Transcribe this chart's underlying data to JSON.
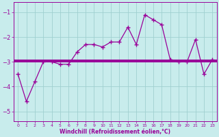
{
  "xlabel": "Windchill (Refroidissement éolien,°C)",
  "ylabel": "",
  "bg_color": "#c8ecec",
  "line_color": "#990099",
  "grid_color": "#a0d0d0",
  "x_data": [
    0,
    1,
    2,
    3,
    4,
    5,
    6,
    7,
    8,
    9,
    10,
    11,
    12,
    13,
    14,
    15,
    16,
    17,
    18,
    19,
    20,
    21,
    22,
    23
  ],
  "y_data": [
    -3.5,
    -4.6,
    -3.8,
    -3.0,
    -3.0,
    -3.1,
    -3.1,
    -2.6,
    -2.3,
    -2.3,
    -2.4,
    -2.2,
    -2.2,
    -1.6,
    -2.3,
    -1.1,
    -1.3,
    -1.5,
    -2.9,
    -3.0,
    -3.0,
    -2.1,
    -3.5,
    -2.9
  ],
  "reg_line1_x": [
    -0.5,
    23.5
  ],
  "reg_line1_y": [
    -3.0,
    -3.0
  ],
  "reg_line2_x": [
    -0.5,
    23.5
  ],
  "reg_line2_y": [
    -2.95,
    -2.95
  ],
  "ylim": [
    -5.4,
    -0.6
  ],
  "xlim": [
    -0.5,
    23.5
  ],
  "yticks": [
    -5,
    -4,
    -3,
    -2,
    -1
  ],
  "xticks": [
    0,
    1,
    2,
    3,
    4,
    5,
    6,
    7,
    8,
    9,
    10,
    11,
    12,
    13,
    14,
    15,
    16,
    17,
    18,
    19,
    20,
    21,
    22,
    23
  ],
  "marker": "+",
  "markersize": 4,
  "linewidth": 0.9
}
